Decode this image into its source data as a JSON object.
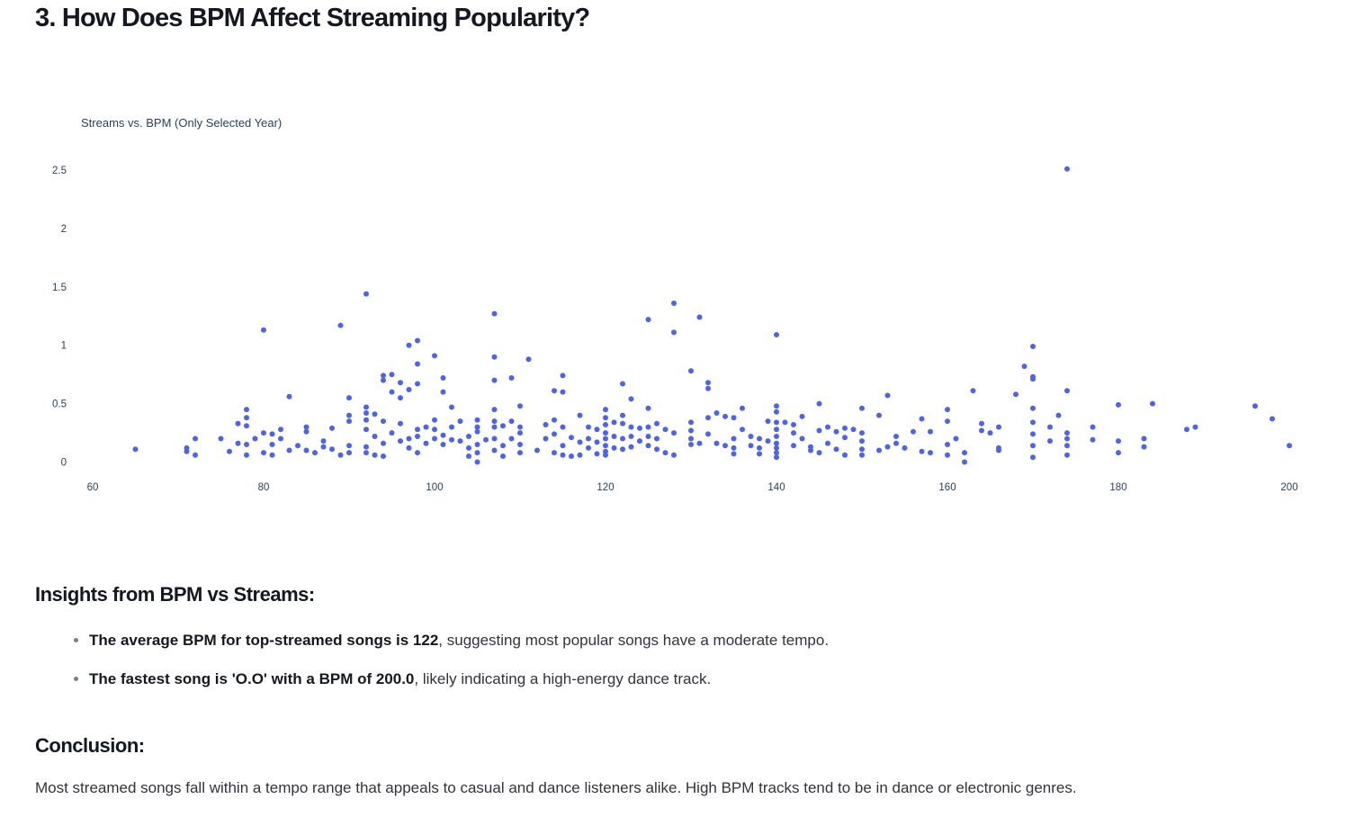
{
  "page": {
    "heading": "3. How Does BPM Affect Streaming Popularity?"
  },
  "insights": {
    "title": "Insights from BPM vs Streams:",
    "items": [
      {
        "bold": "The average BPM for top-streamed songs is 122",
        "rest": ", suggesting most popular songs have a moderate tempo."
      },
      {
        "bold": "The fastest song is 'O.O' with a BPM of 200.0",
        "rest": ", likely indicating a high-energy dance track."
      }
    ]
  },
  "conclusion": {
    "title": "Conclusion:",
    "text": "Most streamed songs fall within a tempo range that appeals to casual and dance listeners alike. High BPM tracks tend to be in dance or electronic genres."
  },
  "chart_data": {
    "type": "scatter",
    "title": "Streams vs. BPM (Only Selected Year)",
    "xlabel": "",
    "ylabel": "",
    "xlim": [
      60,
      200
    ],
    "ylim": [
      -0.05,
      2.6
    ],
    "x_ticks": [
      60,
      80,
      100,
      120,
      140,
      160,
      180,
      200
    ],
    "y_ticks": [
      0,
      0.5,
      1,
      1.5,
      2,
      2.5
    ],
    "y_tick_labels": [
      "0",
      "0.5",
      "1",
      "1.5",
      "2",
      "2.5"
    ],
    "grid": false,
    "marker_color": "#4f63e8",
    "points": [
      [
        65,
        0.11
      ],
      [
        71,
        0.12
      ],
      [
        71,
        0.09
      ],
      [
        72,
        0.2
      ],
      [
        72,
        0.06
      ],
      [
        75,
        0.2
      ],
      [
        76,
        0.09
      ],
      [
        77,
        0.33
      ],
      [
        77,
        0.16
      ],
      [
        78,
        0.45
      ],
      [
        78,
        0.38
      ],
      [
        78,
        0.31
      ],
      [
        78,
        0.15
      ],
      [
        78,
        0.06
      ],
      [
        79,
        0.2
      ],
      [
        80,
        1.13
      ],
      [
        80,
        0.25
      ],
      [
        80,
        0.08
      ],
      [
        81,
        0.24
      ],
      [
        81,
        0.15
      ],
      [
        81,
        0.06
      ],
      [
        82,
        0.28
      ],
      [
        82,
        0.2
      ],
      [
        83,
        0.56
      ],
      [
        83,
        0.1
      ],
      [
        84,
        0.14
      ],
      [
        85,
        0.3
      ],
      [
        85,
        0.26
      ],
      [
        85,
        0.1
      ],
      [
        86,
        0.08
      ],
      [
        87,
        0.18
      ],
      [
        87,
        0.13
      ],
      [
        88,
        0.29
      ],
      [
        88,
        0.11
      ],
      [
        89,
        1.17
      ],
      [
        89,
        0.06
      ],
      [
        90,
        0.55
      ],
      [
        90,
        0.4
      ],
      [
        90,
        0.35
      ],
      [
        90,
        0.14
      ],
      [
        90,
        0.08
      ],
      [
        92,
        1.44
      ],
      [
        92,
        0.47
      ],
      [
        92,
        0.42
      ],
      [
        92,
        0.36
      ],
      [
        92,
        0.28
      ],
      [
        92,
        0.13
      ],
      [
        92,
        0.08
      ],
      [
        93,
        0.41
      ],
      [
        93,
        0.22
      ],
      [
        93,
        0.06
      ],
      [
        94,
        0.74
      ],
      [
        94,
        0.7
      ],
      [
        94,
        0.35
      ],
      [
        94,
        0.16
      ],
      [
        94,
        0.05
      ],
      [
        95,
        0.75
      ],
      [
        95,
        0.6
      ],
      [
        95,
        0.25
      ],
      [
        96,
        0.68
      ],
      [
        96,
        0.55
      ],
      [
        96,
        0.33
      ],
      [
        96,
        0.18
      ],
      [
        97,
        1.0
      ],
      [
        97,
        0.62
      ],
      [
        97,
        0.2
      ],
      [
        97,
        0.12
      ],
      [
        98,
        1.04
      ],
      [
        98,
        0.84
      ],
      [
        98,
        0.67
      ],
      [
        98,
        0.28
      ],
      [
        98,
        0.22
      ],
      [
        98,
        0.08
      ],
      [
        99,
        0.3
      ],
      [
        99,
        0.16
      ],
      [
        100,
        0.91
      ],
      [
        100,
        0.36
      ],
      [
        100,
        0.28
      ],
      [
        100,
        0.2
      ],
      [
        101,
        0.72
      ],
      [
        101,
        0.6
      ],
      [
        101,
        0.23
      ],
      [
        101,
        0.15
      ],
      [
        102,
        0.47
      ],
      [
        102,
        0.3
      ],
      [
        102,
        0.19
      ],
      [
        103,
        0.35
      ],
      [
        103,
        0.18
      ],
      [
        104,
        0.22
      ],
      [
        104,
        0.12
      ],
      [
        104,
        0.05
      ],
      [
        105,
        0.36
      ],
      [
        105,
        0.3
      ],
      [
        105,
        0.26
      ],
      [
        105,
        0.15
      ],
      [
        105,
        0.08
      ],
      [
        105,
        0.0
      ],
      [
        106,
        0.19
      ],
      [
        107,
        1.27
      ],
      [
        107,
        0.9
      ],
      [
        107,
        0.7
      ],
      [
        107,
        0.45
      ],
      [
        107,
        0.35
      ],
      [
        107,
        0.3
      ],
      [
        107,
        0.2
      ],
      [
        107,
        0.1
      ],
      [
        108,
        0.31
      ],
      [
        108,
        0.14
      ],
      [
        108,
        0.05
      ],
      [
        109,
        0.72
      ],
      [
        109,
        0.35
      ],
      [
        109,
        0.2
      ],
      [
        110,
        0.48
      ],
      [
        110,
        0.3
      ],
      [
        110,
        0.25
      ],
      [
        110,
        0.15
      ],
      [
        110,
        0.08
      ],
      [
        111,
        0.88
      ],
      [
        112,
        0.1
      ],
      [
        113,
        0.32
      ],
      [
        113,
        0.2
      ],
      [
        114,
        0.61
      ],
      [
        114,
        0.36
      ],
      [
        114,
        0.24
      ],
      [
        114,
        0.08
      ],
      [
        115,
        0.74
      ],
      [
        115,
        0.6
      ],
      [
        115,
        0.3
      ],
      [
        115,
        0.14
      ],
      [
        115,
        0.06
      ],
      [
        116,
        0.21
      ],
      [
        116,
        0.05
      ],
      [
        117,
        0.4
      ],
      [
        117,
        0.17
      ],
      [
        117,
        0.06
      ],
      [
        118,
        0.3
      ],
      [
        118,
        0.2
      ],
      [
        118,
        0.12
      ],
      [
        119,
        0.28
      ],
      [
        119,
        0.17
      ],
      [
        119,
        0.07
      ],
      [
        120,
        0.45
      ],
      [
        120,
        0.38
      ],
      [
        120,
        0.32
      ],
      [
        120,
        0.25
      ],
      [
        120,
        0.2
      ],
      [
        120,
        0.14
      ],
      [
        120,
        0.09
      ],
      [
        120,
        0.06
      ],
      [
        121,
        0.34
      ],
      [
        121,
        0.22
      ],
      [
        121,
        0.12
      ],
      [
        122,
        0.67
      ],
      [
        122,
        0.4
      ],
      [
        122,
        0.33
      ],
      [
        122,
        0.2
      ],
      [
        122,
        0.11
      ],
      [
        123,
        0.54
      ],
      [
        123,
        0.3
      ],
      [
        123,
        0.22
      ],
      [
        123,
        0.13
      ],
      [
        124,
        0.29
      ],
      [
        124,
        0.18
      ],
      [
        125,
        1.22
      ],
      [
        125,
        0.46
      ],
      [
        125,
        0.3
      ],
      [
        125,
        0.22
      ],
      [
        125,
        0.14
      ],
      [
        126,
        0.33
      ],
      [
        126,
        0.2
      ],
      [
        126,
        0.11
      ],
      [
        127,
        0.28
      ],
      [
        127,
        0.08
      ],
      [
        128,
        1.36
      ],
      [
        128,
        1.11
      ],
      [
        128,
        0.25
      ],
      [
        128,
        0.06
      ],
      [
        130,
        0.78
      ],
      [
        130,
        0.34
      ],
      [
        130,
        0.27
      ],
      [
        130,
        0.2
      ],
      [
        130,
        0.15
      ],
      [
        131,
        1.24
      ],
      [
        131,
        0.16
      ],
      [
        132,
        0.68
      ],
      [
        132,
        0.63
      ],
      [
        132,
        0.38
      ],
      [
        132,
        0.24
      ],
      [
        133,
        0.42
      ],
      [
        133,
        0.16
      ],
      [
        134,
        0.39
      ],
      [
        134,
        0.14
      ],
      [
        135,
        0.38
      ],
      [
        135,
        0.2
      ],
      [
        135,
        0.12
      ],
      [
        135,
        0.07
      ],
      [
        136,
        0.46
      ],
      [
        136,
        0.28
      ],
      [
        137,
        0.22
      ],
      [
        137,
        0.14
      ],
      [
        138,
        0.2
      ],
      [
        138,
        0.12
      ],
      [
        138,
        0.07
      ],
      [
        139,
        0.35
      ],
      [
        139,
        0.18
      ],
      [
        140,
        1.09
      ],
      [
        140,
        0.48
      ],
      [
        140,
        0.43
      ],
      [
        140,
        0.34
      ],
      [
        140,
        0.28
      ],
      [
        140,
        0.22
      ],
      [
        140,
        0.16
      ],
      [
        140,
        0.12
      ],
      [
        140,
        0.08
      ],
      [
        140,
        0.04
      ],
      [
        141,
        0.34
      ],
      [
        142,
        0.32
      ],
      [
        142,
        0.25
      ],
      [
        142,
        0.14
      ],
      [
        143,
        0.39
      ],
      [
        143,
        0.2
      ],
      [
        144,
        0.13
      ],
      [
        144,
        0.1
      ],
      [
        145,
        0.5
      ],
      [
        145,
        0.27
      ],
      [
        145,
        0.08
      ],
      [
        146,
        0.3
      ],
      [
        146,
        0.16
      ],
      [
        147,
        0.26
      ],
      [
        147,
        0.11
      ],
      [
        148,
        0.29
      ],
      [
        148,
        0.21
      ],
      [
        148,
        0.06
      ],
      [
        149,
        0.28
      ],
      [
        150,
        0.46
      ],
      [
        150,
        0.25
      ],
      [
        150,
        0.18
      ],
      [
        150,
        0.11
      ],
      [
        150,
        0.06
      ],
      [
        152,
        0.4
      ],
      [
        152,
        0.1
      ],
      [
        153,
        0.57
      ],
      [
        153,
        0.13
      ],
      [
        154,
        0.22
      ],
      [
        154,
        0.16
      ],
      [
        155,
        0.12
      ],
      [
        156,
        0.26
      ],
      [
        157,
        0.37
      ],
      [
        157,
        0.09
      ],
      [
        158,
        0.26
      ],
      [
        158,
        0.08
      ],
      [
        160,
        0.45
      ],
      [
        160,
        0.35
      ],
      [
        160,
        0.15
      ],
      [
        160,
        0.06
      ],
      [
        161,
        0.2
      ],
      [
        162,
        0.08
      ],
      [
        162,
        0.0
      ],
      [
        163,
        0.61
      ],
      [
        164,
        0.33
      ],
      [
        164,
        0.27
      ],
      [
        165,
        0.25
      ],
      [
        166,
        0.3
      ],
      [
        166,
        0.12
      ],
      [
        166,
        0.1
      ],
      [
        168,
        0.58
      ],
      [
        169,
        0.82
      ],
      [
        170,
        0.99
      ],
      [
        170,
        0.73
      ],
      [
        170,
        0.71
      ],
      [
        170,
        0.46
      ],
      [
        170,
        0.34
      ],
      [
        170,
        0.24
      ],
      [
        170,
        0.14
      ],
      [
        170,
        0.04
      ],
      [
        172,
        0.3
      ],
      [
        172,
        0.18
      ],
      [
        173,
        0.4
      ],
      [
        174,
        2.51
      ],
      [
        174,
        0.61
      ],
      [
        174,
        0.25
      ],
      [
        174,
        0.2
      ],
      [
        174,
        0.14
      ],
      [
        174,
        0.06
      ],
      [
        177,
        0.3
      ],
      [
        177,
        0.19
      ],
      [
        180,
        0.49
      ],
      [
        180,
        0.18
      ],
      [
        180,
        0.08
      ],
      [
        183,
        0.2
      ],
      [
        183,
        0.13
      ],
      [
        184,
        0.5
      ],
      [
        188,
        0.28
      ],
      [
        189,
        0.3
      ],
      [
        196,
        0.48
      ],
      [
        198,
        0.37
      ],
      [
        200,
        0.14
      ]
    ]
  }
}
